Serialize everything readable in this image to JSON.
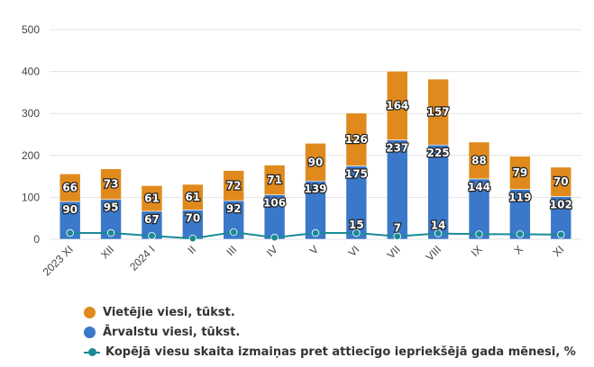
{
  "chart_data": {
    "type": "bar",
    "stacked": true,
    "categories": [
      "2023 XI",
      "XII",
      "2024 I",
      "II",
      "III",
      "IV",
      "V",
      "VI",
      "VII",
      "VIII",
      "IX",
      "X",
      "XI"
    ],
    "series": [
      {
        "name": "Ārvalstu viesi, tūkst.",
        "color": "#3a78c9",
        "values": [
          90,
          95,
          67,
          70,
          92,
          106,
          139,
          175,
          237,
          225,
          144,
          119,
          102
        ],
        "labels": [
          "90",
          "95",
          "67",
          "70",
          "92",
          "106",
          "139",
          "175",
          "237",
          "225",
          "144",
          "119",
          "102"
        ]
      },
      {
        "name": "Vietējie viesi, tūkst.",
        "color": "#e08a1e",
        "values": [
          66,
          73,
          61,
          61,
          72,
          71,
          90,
          126,
          164,
          157,
          88,
          79,
          70
        ],
        "labels": [
          "66",
          "73",
          "61",
          "61",
          "72",
          "71",
          "90",
          "126",
          "164",
          "157",
          "88",
          "79",
          "70"
        ]
      }
    ],
    "line_series": {
      "name": "Kopējā viesu skaita izmaiņas pret attiecīgo iepriekšējā gada mēnesi, %",
      "color": "#1a8a96",
      "values": [
        15,
        15,
        8,
        2,
        17,
        4,
        15,
        15,
        7,
        14,
        12,
        12,
        11
      ],
      "labels": [
        "",
        "",
        "",
        "",
        "",
        "",
        "",
        "15",
        "7",
        "14",
        "",
        "",
        ""
      ]
    },
    "y_ticks": [
      "0",
      "100",
      "200",
      "300",
      "400",
      "500"
    ],
    "ylim": [
      0,
      500
    ],
    "grid": true,
    "legend_position": "bottom-left",
    "title": "",
    "xlabel": "",
    "ylabel": ""
  },
  "legend": [
    {
      "label": "Vietējie viesi, tūkst.",
      "color": "#e08a1e",
      "kind": "dot"
    },
    {
      "label": "Ārvalstu viesi, tūkst.",
      "color": "#3a78c9",
      "kind": "dot"
    },
    {
      "label": "Kopējā viesu skaita izmaiņas pret attiecīgo iepriekšējā gada mēnesi, %",
      "color": "#1a8a96",
      "kind": "line"
    }
  ]
}
